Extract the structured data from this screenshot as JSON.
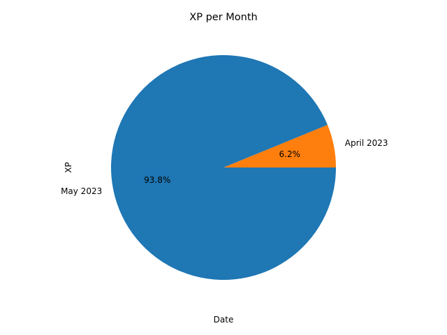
{
  "chart_data": {
    "type": "pie",
    "title": "XP per Month",
    "xlabel": "Date",
    "ylabel": "XP",
    "categories": [
      "April 2023",
      "May 2023"
    ],
    "percent_labels": [
      "6.2%",
      "93.8%"
    ],
    "values": [
      6.2,
      93.8
    ],
    "colors": [
      "#ff7f0e",
      "#1f77b4"
    ],
    "start_angle_deg": 0,
    "direction": "counterclockwise"
  }
}
